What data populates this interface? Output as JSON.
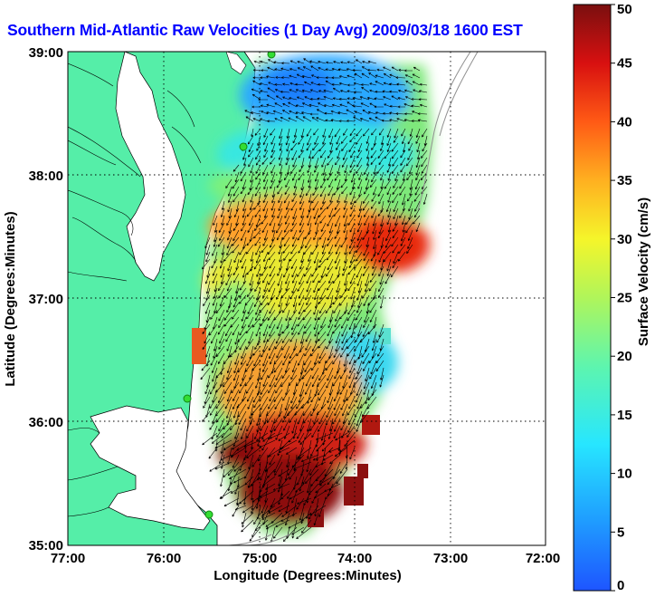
{
  "title": "Southern Mid-Atlantic Raw Velocities (1 Day Avg) 2009/03/18 1600 EST",
  "map": {
    "xlabel": "Longitude (Degrees:Minutes)",
    "ylabel": "Latitude (Degrees:Minutes)",
    "lon_range": [
      -77,
      -72
    ],
    "lat_range": [
      35,
      39
    ],
    "x_ticks": [
      "77:00",
      "76:00",
      "75:00",
      "74:00",
      "73:00",
      "72:00"
    ],
    "y_ticks": [
      "35:00",
      "36:00",
      "37:00",
      "38:00",
      "39:00"
    ],
    "grid": "dotted",
    "land_color": "#55eea8",
    "water_color": "#ffffff",
    "station_color": "#33dd33"
  },
  "colorbar": {
    "label": "Surface Velocity (cm/s)",
    "min": 0,
    "max": 50,
    "ticks": [
      "0",
      "5",
      "10",
      "15",
      "20",
      "25",
      "30",
      "35",
      "40",
      "45",
      "50"
    ],
    "colormap": "jet"
  },
  "chart_data": {
    "type": "heatmap",
    "title": "Southern Mid-Atlantic Raw Velocities (1 Day Avg) 2009/03/18 1600 EST",
    "xlabel": "Longitude (Degrees:Minutes)",
    "ylabel": "Latitude (Degrees:Minutes)",
    "xlim": [
      -77,
      -72
    ],
    "ylim": [
      35,
      39
    ],
    "value_label": "Surface Velocity (cm/s)",
    "value_range": [
      0,
      50
    ],
    "regions": [
      {
        "lat": 38.8,
        "lon": -74.6,
        "speed": 8
      },
      {
        "lat": 38.4,
        "lon": -74.8,
        "speed": 12
      },
      {
        "lat": 37.7,
        "lon": -74.9,
        "speed": 32
      },
      {
        "lat": 37.5,
        "lon": -73.7,
        "speed": 42
      },
      {
        "lat": 37.0,
        "lon": -74.5,
        "speed": 26
      },
      {
        "lat": 36.6,
        "lon": -74.2,
        "speed": 18
      },
      {
        "lat": 36.2,
        "lon": -74.7,
        "speed": 33
      },
      {
        "lat": 35.8,
        "lon": -75.0,
        "speed": 45
      },
      {
        "lat": 35.4,
        "lon": -74.8,
        "speed": 50
      }
    ]
  }
}
